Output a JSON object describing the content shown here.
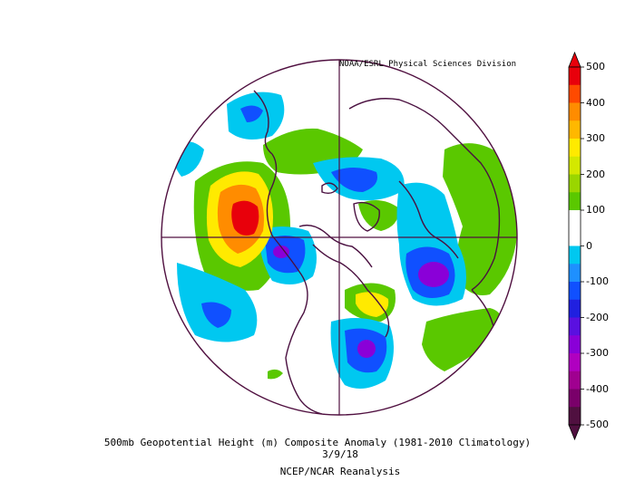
{
  "credit": "NOAA/ESRL Physical Sciences Division",
  "title": "500mb Geopotential Height (m) Composite Anomaly (1981-2010 Climatology)",
  "date": "3/9/18",
  "source": "NCEP/NCAR Reanalysis",
  "colorbar": {
    "labels": [
      "500",
      "400",
      "300",
      "200",
      "100",
      "0",
      "-100",
      "-200",
      "-300",
      "-400",
      "-500"
    ],
    "colors": [
      "#e8000b",
      "#ff4a00",
      "#ff8c00",
      "#ffb800",
      "#ffea00",
      "#d4e800",
      "#9ad600",
      "#5ac800",
      "#ffffff",
      "#ffffff",
      "#00c8f0",
      "#1e90ff",
      "#1050ff",
      "#2020e0",
      "#5a10e0",
      "#8a00d8",
      "#b000c0",
      "#a00090",
      "#7a006a",
      "#501040"
    ],
    "tip_top_color": "#e8000b",
    "tip_bottom_color": "#501040"
  },
  "anomaly_colors": {
    "strong_positive": "#e8000b",
    "positive": "#ff8c00",
    "weak_positive": "#5ac800",
    "weak_negative": "#00c8f0",
    "negative": "#1050ff",
    "strong_negative": "#8a00d8",
    "coastline": "#4a1040"
  }
}
